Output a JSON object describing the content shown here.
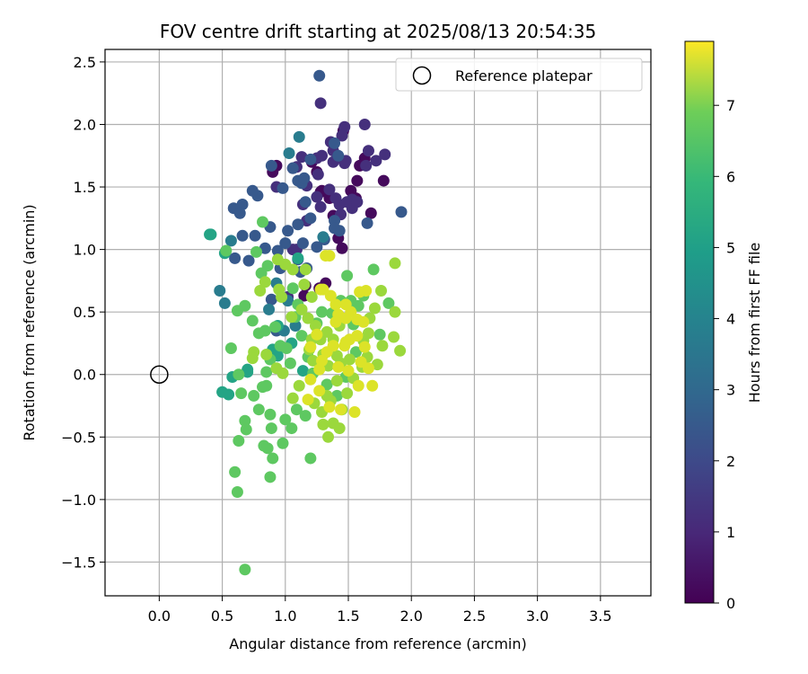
{
  "chart_data": {
    "type": "scatter",
    "title": "FOV centre drift starting at 2025/08/13 20:54:35",
    "xlabel": "Angular distance from reference (arcmin)",
    "ylabel": "Rotation from reference (arcmin)",
    "xlim": [
      -0.43,
      3.9
    ],
    "ylim": [
      -1.77,
      2.6
    ],
    "x_ticks": [
      "0.0",
      "0.5",
      "1.0",
      "1.5",
      "2.0",
      "2.5",
      "3.0",
      "3.5"
    ],
    "y_ticks": [
      "−1.5",
      "−1.0",
      "−0.5",
      "0.0",
      "0.5",
      "1.0",
      "1.5",
      "2.0",
      "2.5"
    ],
    "grid": true,
    "legend": {
      "position": "top-right",
      "entries": [
        "Reference platepar"
      ]
    },
    "reference_point": {
      "x": 0.0,
      "y": 0.0,
      "style": "open circle"
    },
    "colorbar": {
      "label": "Hours from first FF file",
      "range": [
        0,
        7.9
      ],
      "ticks": [
        "0",
        "1",
        "2",
        "3",
        "4",
        "5",
        "6",
        "7"
      ],
      "colormap": "viridis"
    },
    "series": [
      {
        "points": [
          [
            1.29,
            1.47
          ],
          [
            1.28,
            1.46
          ],
          [
            1.38,
            1.27
          ],
          [
            1.42,
            1.09
          ],
          [
            1.45,
            1.01
          ],
          [
            1.57,
            1.55
          ],
          [
            1.68,
            1.29
          ],
          [
            1.59,
            1.67
          ],
          [
            1.52,
            1.47
          ],
          [
            1.78,
            1.55
          ],
          [
            1.63,
            1.73
          ],
          [
            1.35,
            1.41
          ],
          [
            1.56,
            1.41
          ],
          [
            1.46,
            1.95
          ],
          [
            1.21,
            1.7
          ],
          [
            1.25,
            1.62
          ],
          [
            0.9,
            1.62
          ],
          [
            0.93,
            1.67
          ],
          [
            1.16,
            0.71
          ],
          [
            1.27,
            0.69
          ],
          [
            1.32,
            0.73
          ],
          [
            1.15,
            0.63
          ]
        ],
        "t": 0.2
      },
      {
        "points": [
          [
            1.28,
            2.17
          ],
          [
            1.38,
            1.79
          ],
          [
            1.36,
            1.86
          ],
          [
            1.29,
            1.75
          ],
          [
            1.47,
            1.98
          ],
          [
            1.45,
            1.91
          ],
          [
            1.63,
            2.0
          ],
          [
            1.66,
            1.79
          ],
          [
            1.72,
            1.71
          ],
          [
            1.79,
            1.76
          ],
          [
            1.48,
            1.71
          ],
          [
            1.64,
            1.67
          ],
          [
            1.06,
            1.65
          ],
          [
            1.26,
            1.6
          ],
          [
            1.35,
            1.48
          ],
          [
            1.17,
            1.51
          ],
          [
            1.14,
            1.36
          ],
          [
            1.25,
            1.42
          ],
          [
            1.43,
            1.36
          ],
          [
            1.53,
            1.33
          ],
          [
            1.4,
            1.41
          ],
          [
            1.17,
            1.23
          ],
          [
            1.28,
            1.34
          ],
          [
            1.47,
            1.69
          ],
          [
            1.25,
            1.73
          ],
          [
            1.13,
            1.74
          ],
          [
            1.38,
            1.7
          ],
          [
            1.53,
            1.4
          ],
          [
            1.49,
            1.38
          ],
          [
            1.57,
            1.38
          ],
          [
            1.44,
            1.28
          ],
          [
            0.93,
            1.5
          ],
          [
            1.09,
            1.66
          ],
          [
            1.06,
            1.0
          ],
          [
            1.09,
            1.0
          ],
          [
            1.02,
            0.62
          ]
        ],
        "t": 1.1
      },
      {
        "points": [
          [
            1.27,
            2.39
          ],
          [
            1.39,
            1.85
          ],
          [
            1.42,
            1.75
          ],
          [
            1.2,
            1.72
          ],
          [
            1.13,
            1.53
          ],
          [
            1.1,
            1.55
          ],
          [
            1.15,
            1.57
          ],
          [
            0.89,
            1.67
          ],
          [
            1.16,
            1.38
          ],
          [
            0.98,
            1.49
          ],
          [
            1.06,
            1.65
          ],
          [
            0.78,
            1.43
          ],
          [
            0.74,
            1.47
          ],
          [
            0.66,
            1.36
          ],
          [
            0.59,
            1.33
          ],
          [
            0.64,
            1.29
          ],
          [
            0.88,
            1.18
          ],
          [
            0.76,
            1.11
          ],
          [
            0.66,
            1.11
          ],
          [
            0.71,
            0.91
          ],
          [
            0.6,
            0.93
          ],
          [
            0.84,
            1.01
          ],
          [
            0.94,
            0.99
          ],
          [
            1.0,
            1.05
          ],
          [
            1.2,
            1.25
          ],
          [
            1.39,
            1.23
          ],
          [
            1.43,
            1.15
          ],
          [
            1.39,
            1.17
          ],
          [
            1.31,
            1.08
          ],
          [
            1.25,
            1.02
          ],
          [
            1.65,
            1.21
          ],
          [
            1.92,
            1.3
          ],
          [
            1.1,
            1.2
          ],
          [
            1.02,
            1.15
          ],
          [
            1.14,
            1.05
          ],
          [
            1.1,
            0.92
          ],
          [
            1.17,
            0.85
          ],
          [
            1.12,
            0.82
          ],
          [
            0.96,
            0.85
          ],
          [
            0.89,
            0.6
          ],
          [
            0.93,
            0.35
          ]
        ],
        "t": 2.2
      },
      {
        "points": [
          [
            1.11,
            1.9
          ],
          [
            1.03,
            1.77
          ],
          [
            0.57,
            1.07
          ],
          [
            0.52,
            0.57
          ],
          [
            0.48,
            0.67
          ],
          [
            1.3,
            1.1
          ],
          [
            0.93,
            0.73
          ],
          [
            0.87,
            0.52
          ],
          [
            0.99,
            0.35
          ],
          [
            1.08,
            0.39
          ],
          [
            1.02,
            0.59
          ]
        ],
        "t": 3.3
      },
      {
        "points": [
          [
            0.4,
            1.12
          ],
          [
            0.41,
            1.12
          ],
          [
            0.52,
            0.97
          ],
          [
            1.1,
            0.93
          ],
          [
            0.94,
            0.39
          ],
          [
            1.05,
            0.25
          ],
          [
            0.9,
            0.2
          ],
          [
            0.58,
            -0.02
          ],
          [
            0.5,
            -0.14
          ],
          [
            0.55,
            -0.16
          ],
          [
            0.7,
            0.04
          ],
          [
            0.7,
            0.02
          ],
          [
            0.94,
            0.15
          ],
          [
            1.14,
            0.03
          ]
        ],
        "t": 4.6
      },
      {
        "points": [
          [
            0.6,
            -0.78
          ],
          [
            0.62,
            -0.94
          ],
          [
            0.68,
            -1.56
          ],
          [
            0.63,
            -0.53
          ],
          [
            0.86,
            -0.59
          ],
          [
            0.83,
            -0.57
          ],
          [
            0.9,
            -0.67
          ],
          [
            0.88,
            -0.82
          ],
          [
            0.98,
            -0.55
          ],
          [
            1.05,
            -0.43
          ],
          [
            1.2,
            -0.67
          ],
          [
            0.68,
            -0.37
          ],
          [
            0.69,
            -0.44
          ],
          [
            0.89,
            -0.43
          ],
          [
            0.79,
            -0.28
          ],
          [
            0.88,
            -0.32
          ],
          [
            1.0,
            -0.36
          ],
          [
            1.09,
            -0.28
          ],
          [
            1.16,
            -0.33
          ],
          [
            0.63,
            0.0
          ],
          [
            0.65,
            -0.15
          ],
          [
            0.75,
            -0.17
          ],
          [
            0.82,
            -0.1
          ],
          [
            0.85,
            -0.09
          ],
          [
            0.57,
            0.21
          ],
          [
            0.62,
            0.51
          ],
          [
            0.68,
            0.55
          ],
          [
            0.74,
            0.43
          ],
          [
            0.77,
            0.98
          ],
          [
            0.82,
            1.22
          ],
          [
            0.53,
            0.99
          ],
          [
            0.81,
            0.81
          ],
          [
            0.86,
            0.87
          ],
          [
            0.79,
            0.33
          ],
          [
            0.84,
            0.35
          ],
          [
            0.92,
            0.38
          ],
          [
            0.96,
            0.23
          ],
          [
            1.01,
            0.21
          ],
          [
            1.04,
            0.09
          ],
          [
            0.88,
            0.12
          ],
          [
            0.85,
            0.02
          ],
          [
            1.06,
            0.69
          ],
          [
            1.1,
            0.56
          ],
          [
            1.08,
            0.46
          ],
          [
            1.13,
            0.31
          ],
          [
            1.18,
            0.14
          ],
          [
            1.22,
            0.01
          ],
          [
            1.33,
            -0.08
          ],
          [
            1.41,
            -0.17
          ],
          [
            1.48,
            -0.02
          ],
          [
            1.56,
            0.18
          ],
          [
            1.54,
            0.4
          ],
          [
            1.58,
            0.55
          ],
          [
            1.62,
            0.63
          ],
          [
            1.7,
            0.84
          ],
          [
            1.82,
            0.57
          ],
          [
            1.75,
            0.32
          ],
          [
            1.37,
            0.49
          ],
          [
            1.44,
            0.59
          ],
          [
            1.49,
            0.79
          ],
          [
            1.52,
            0.59
          ],
          [
            1.29,
            0.5
          ],
          [
            1.25,
            0.41
          ]
        ],
        "t": 5.9
      },
      {
        "points": [
          [
            0.75,
            0.18
          ],
          [
            0.74,
            0.13
          ],
          [
            0.85,
            0.16
          ],
          [
            0.93,
            0.05
          ],
          [
            0.98,
            0.01
          ],
          [
            0.97,
            0.62
          ],
          [
            0.95,
            0.68
          ],
          [
            0.8,
            0.67
          ],
          [
            0.84,
            0.74
          ],
          [
            0.94,
            0.92
          ],
          [
            1.0,
            0.88
          ],
          [
            1.06,
            0.84
          ],
          [
            1.16,
            0.84
          ],
          [
            1.15,
            0.72
          ],
          [
            1.21,
            0.62
          ],
          [
            1.13,
            0.52
          ],
          [
            1.05,
            0.46
          ],
          [
            1.18,
            0.45
          ],
          [
            1.24,
            0.39
          ],
          [
            1.21,
            0.28
          ],
          [
            1.19,
            0.2
          ],
          [
            1.3,
            0.16
          ],
          [
            1.22,
            0.11
          ],
          [
            1.34,
            0.07
          ],
          [
            1.28,
            0.28
          ],
          [
            1.33,
            0.34
          ],
          [
            1.38,
            0.28
          ],
          [
            1.43,
            0.39
          ],
          [
            1.41,
            0.15
          ],
          [
            1.44,
            0.09
          ],
          [
            1.51,
            0.12
          ],
          [
            1.41,
            -0.05
          ],
          [
            1.49,
            -0.15
          ],
          [
            1.54,
            -0.03
          ],
          [
            1.61,
            0.06
          ],
          [
            1.65,
            0.14
          ],
          [
            1.73,
            0.08
          ],
          [
            1.77,
            0.23
          ],
          [
            1.86,
            0.3
          ],
          [
            1.91,
            0.19
          ],
          [
            1.67,
            0.45
          ],
          [
            1.71,
            0.53
          ],
          [
            1.76,
            0.67
          ],
          [
            1.87,
            0.89
          ],
          [
            1.87,
            0.5
          ],
          [
            1.62,
            0.27
          ],
          [
            1.66,
            0.33
          ],
          [
            1.06,
            -0.19
          ],
          [
            1.11,
            -0.09
          ],
          [
            1.23,
            -0.23
          ],
          [
            1.3,
            -0.4
          ],
          [
            1.29,
            -0.3
          ],
          [
            1.34,
            -0.5
          ],
          [
            1.38,
            -0.39
          ],
          [
            1.43,
            -0.43
          ],
          [
            1.45,
            -0.28
          ],
          [
            1.33,
            -0.17
          ],
          [
            1.36,
            -0.21
          ]
        ],
        "t": 6.7
      },
      {
        "points": [
          [
            1.28,
            0.68
          ],
          [
            1.32,
            0.95
          ],
          [
            1.35,
            0.95
          ],
          [
            1.3,
            0.68
          ],
          [
            1.36,
            0.63
          ],
          [
            1.4,
            0.56
          ],
          [
            1.48,
            0.56
          ],
          [
            1.52,
            0.5
          ],
          [
            1.57,
            0.44
          ],
          [
            1.62,
            0.42
          ],
          [
            1.64,
            0.67
          ],
          [
            1.59,
            0.66
          ],
          [
            1.48,
            0.45
          ],
          [
            1.42,
            0.48
          ],
          [
            1.38,
            0.23
          ],
          [
            1.47,
            0.23
          ],
          [
            1.51,
            0.28
          ],
          [
            1.57,
            0.31
          ],
          [
            1.63,
            0.22
          ],
          [
            1.66,
            0.05
          ],
          [
            1.69,
            -0.09
          ],
          [
            1.58,
            -0.09
          ],
          [
            1.5,
            0.03
          ],
          [
            1.42,
            0.06
          ],
          [
            1.33,
            0.18
          ],
          [
            1.27,
            0.04
          ],
          [
            1.2,
            -0.04
          ],
          [
            1.18,
            -0.2
          ],
          [
            1.27,
            -0.13
          ],
          [
            1.35,
            -0.26
          ],
          [
            1.44,
            -0.28
          ],
          [
            1.55,
            -0.3
          ],
          [
            1.2,
            0.22
          ],
          [
            1.25,
            0.32
          ],
          [
            1.29,
            0.11
          ],
          [
            1.4,
            0.42
          ],
          [
            1.48,
            0.26
          ],
          [
            1.6,
            0.1
          ]
        ],
        "t": 7.5
      }
    ]
  }
}
